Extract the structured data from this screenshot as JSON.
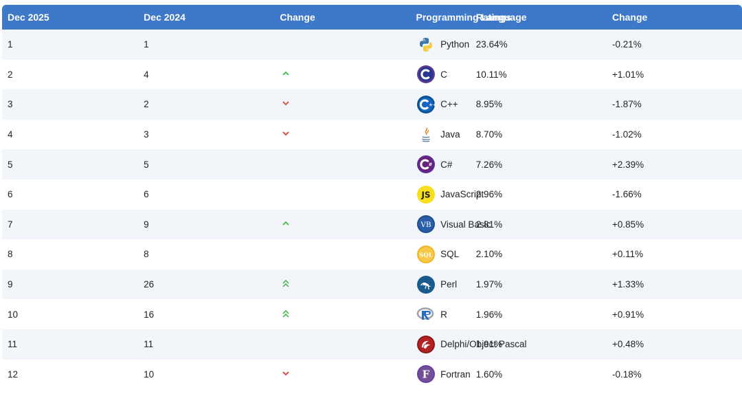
{
  "header": {
    "col_current": "Dec 2025",
    "col_previous": "Dec 2024",
    "col_change": "Change",
    "col_language": "Programming Language",
    "col_ratings": "Ratings",
    "col_change2": "Change"
  },
  "colors": {
    "header_bg": "#3e78c8",
    "row_alt_bg": "#f2f6fb",
    "arrow_up": "#5cb85c",
    "arrow_down": "#d9534f"
  },
  "rows": [
    {
      "rank_now": "1",
      "rank_prev": "1",
      "trend": "none",
      "icon": "python-icon",
      "language": "Python",
      "rating": "23.64%",
      "change": "-0.21%"
    },
    {
      "rank_now": "2",
      "rank_prev": "4",
      "trend": "up",
      "icon": "c-icon",
      "language": "C",
      "rating": "10.11%",
      "change": "+1.01%"
    },
    {
      "rank_now": "3",
      "rank_prev": "2",
      "trend": "down",
      "icon": "cpp-icon",
      "language": "C++",
      "rating": "8.95%",
      "change": "-1.87%"
    },
    {
      "rank_now": "4",
      "rank_prev": "3",
      "trend": "down",
      "icon": "java-icon",
      "language": "Java",
      "rating": "8.70%",
      "change": "-1.02%"
    },
    {
      "rank_now": "5",
      "rank_prev": "5",
      "trend": "none",
      "icon": "csharp-icon",
      "language": "C#",
      "rating": "7.26%",
      "change": "+2.39%"
    },
    {
      "rank_now": "6",
      "rank_prev": "6",
      "trend": "none",
      "icon": "javascript-icon",
      "language": "JavaScript",
      "rating": "2.96%",
      "change": "-1.66%"
    },
    {
      "rank_now": "7",
      "rank_prev": "9",
      "trend": "up",
      "icon": "visual-basic-icon",
      "language": "Visual Basic",
      "rating": "2.81%",
      "change": "+0.85%"
    },
    {
      "rank_now": "8",
      "rank_prev": "8",
      "trend": "none",
      "icon": "sql-icon",
      "language": "SQL",
      "rating": "2.10%",
      "change": "+0.11%"
    },
    {
      "rank_now": "9",
      "rank_prev": "26",
      "trend": "up-double",
      "icon": "perl-icon",
      "language": "Perl",
      "rating": "1.97%",
      "change": "+1.33%"
    },
    {
      "rank_now": "10",
      "rank_prev": "16",
      "trend": "up-double",
      "icon": "r-icon",
      "language": "R",
      "rating": "1.96%",
      "change": "+0.91%"
    },
    {
      "rank_now": "11",
      "rank_prev": "11",
      "trend": "none",
      "icon": "delphi-icon",
      "language": "Delphi/Object Pascal",
      "rating": "1.91%",
      "change": "+0.48%"
    },
    {
      "rank_now": "12",
      "rank_prev": "10",
      "trend": "down",
      "icon": "fortran-icon",
      "language": "Fortran",
      "rating": "1.60%",
      "change": "-0.18%"
    }
  ]
}
